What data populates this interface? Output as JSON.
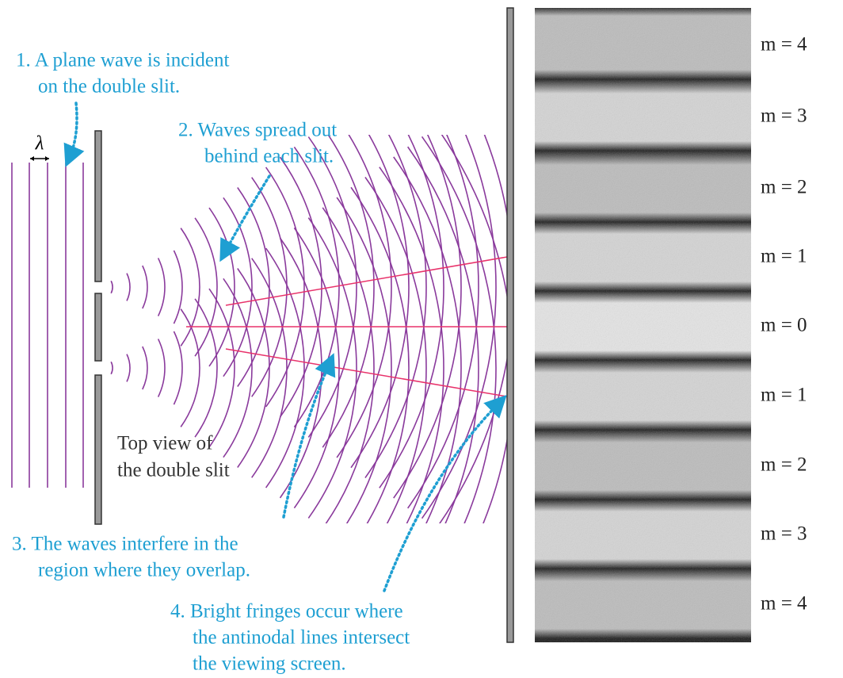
{
  "wavelength_label": "λ",
  "annotations": [
    {
      "lines": [
        "1. A plane wave is incident",
        "on the double slit."
      ]
    },
    {
      "lines": [
        "2. Waves spread out",
        "behind each slit."
      ]
    },
    {
      "lines": [
        "3. The waves interfere in the",
        "region where they overlap."
      ]
    },
    {
      "lines": [
        "4. Bright fringes occur where",
        "the antinodal lines intersect",
        "the viewing screen."
      ]
    }
  ],
  "slit_caption": {
    "lines": [
      "Top view of",
      "the double slit"
    ]
  },
  "fringe_labels": [
    "m = 4",
    "m = 3",
    "m = 2",
    "m = 1",
    "m = 0",
    "m = 1",
    "m = 2",
    "m = 3",
    "m = 4"
  ]
}
